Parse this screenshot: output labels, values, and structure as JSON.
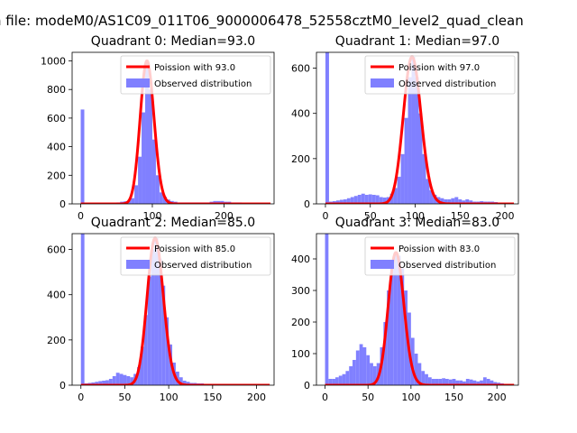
{
  "figure": {
    "suptitle": "n file: modeM0/AS1C09_011T06_9000006478_52558cztM0_level2_quad_clean"
  },
  "chart_data": [
    {
      "type": "bar",
      "title": "Quadrant 0: Median=93.0",
      "xlim": [
        -12,
        270
      ],
      "ylim": [
        0,
        1060
      ],
      "xticks": [
        0,
        100,
        200
      ],
      "yticks": [
        0,
        200,
        400,
        600,
        800,
        1000
      ],
      "legend": {
        "placement": "upper right",
        "entries": [
          "Poission with 93.0",
          "Observed distribution"
        ]
      },
      "line_color": "#ff0000",
      "bar_color": "#8080ff",
      "median": 93.0,
      "bin_width": 5,
      "bins": [
        [
          0,
          660
        ],
        [
          5,
          5
        ],
        [
          10,
          5
        ],
        [
          15,
          5
        ],
        [
          20,
          5
        ],
        [
          25,
          5
        ],
        [
          30,
          5
        ],
        [
          35,
          5
        ],
        [
          40,
          5
        ],
        [
          45,
          8
        ],
        [
          50,
          10
        ],
        [
          55,
          15
        ],
        [
          60,
          18
        ],
        [
          65,
          22
        ],
        [
          70,
          40
        ],
        [
          75,
          130
        ],
        [
          80,
          330
        ],
        [
          85,
          640
        ],
        [
          90,
          1000
        ],
        [
          95,
          800
        ],
        [
          100,
          450
        ],
        [
          105,
          200
        ],
        [
          110,
          80
        ],
        [
          115,
          50
        ],
        [
          120,
          30
        ],
        [
          125,
          20
        ],
        [
          130,
          15
        ],
        [
          135,
          10
        ],
        [
          140,
          10
        ],
        [
          145,
          10
        ],
        [
          150,
          10
        ],
        [
          155,
          10
        ],
        [
          160,
          10
        ],
        [
          165,
          10
        ],
        [
          170,
          10
        ],
        [
          175,
          10
        ],
        [
          180,
          15
        ],
        [
          185,
          20
        ],
        [
          190,
          20
        ],
        [
          195,
          20
        ],
        [
          200,
          15
        ],
        [
          205,
          15
        ],
        [
          210,
          10
        ],
        [
          215,
          10
        ],
        [
          220,
          10
        ],
        [
          225,
          5
        ],
        [
          230,
          5
        ],
        [
          235,
          5
        ],
        [
          240,
          5
        ],
        [
          245,
          5
        ],
        [
          250,
          3
        ],
        [
          255,
          3
        ]
      ]
    },
    {
      "type": "bar",
      "title": "Quadrant 1: Median=97.0",
      "xlim": [
        -10,
        215
      ],
      "ylim": [
        0,
        670
      ],
      "xticks": [
        0,
        50,
        100,
        150,
        200
      ],
      "yticks": [
        0,
        200,
        400,
        600
      ],
      "legend": {
        "placement": "upper right",
        "entries": [
          "Poission with 97.0",
          "Observed distribution"
        ]
      },
      "line_color": "#ff0000",
      "bar_color": "#8080ff",
      "median": 97.0,
      "bin_width": 4,
      "bins": [
        [
          0,
          670
        ],
        [
          4,
          10
        ],
        [
          8,
          12
        ],
        [
          12,
          15
        ],
        [
          16,
          18
        ],
        [
          20,
          20
        ],
        [
          24,
          25
        ],
        [
          28,
          30
        ],
        [
          32,
          35
        ],
        [
          36,
          40
        ],
        [
          40,
          45
        ],
        [
          44,
          40
        ],
        [
          48,
          42
        ],
        [
          52,
          40
        ],
        [
          56,
          38
        ],
        [
          60,
          30
        ],
        [
          64,
          28
        ],
        [
          68,
          30
        ],
        [
          72,
          45
        ],
        [
          76,
          70
        ],
        [
          80,
          120
        ],
        [
          84,
          220
        ],
        [
          88,
          380
        ],
        [
          92,
          560
        ],
        [
          96,
          650
        ],
        [
          100,
          560
        ],
        [
          104,
          400
        ],
        [
          108,
          220
        ],
        [
          112,
          110
        ],
        [
          116,
          60
        ],
        [
          120,
          40
        ],
        [
          124,
          30
        ],
        [
          128,
          25
        ],
        [
          132,
          20
        ],
        [
          136,
          20
        ],
        [
          140,
          25
        ],
        [
          144,
          30
        ],
        [
          148,
          20
        ],
        [
          152,
          15
        ],
        [
          156,
          20
        ],
        [
          160,
          15
        ],
        [
          164,
          10
        ],
        [
          168,
          10
        ],
        [
          172,
          12
        ],
        [
          176,
          10
        ],
        [
          180,
          10
        ],
        [
          184,
          10
        ],
        [
          188,
          8
        ],
        [
          192,
          6
        ],
        [
          196,
          6
        ],
        [
          200,
          4
        ],
        [
          204,
          4
        ]
      ]
    },
    {
      "type": "bar",
      "title": "Quadrant 2: Median=85.0",
      "xlim": [
        -10,
        220
      ],
      "ylim": [
        0,
        670
      ],
      "xticks": [
        0,
        50,
        100,
        150,
        200
      ],
      "yticks": [
        0,
        200,
        400,
        600
      ],
      "legend": {
        "placement": "upper right",
        "entries": [
          "Poission with 85.0",
          "Observed distribution"
        ]
      },
      "line_color": "#ff0000",
      "bar_color": "#8080ff",
      "median": 85.0,
      "bin_width": 4,
      "bins": [
        [
          0,
          670
        ],
        [
          4,
          8
        ],
        [
          8,
          10
        ],
        [
          12,
          12
        ],
        [
          16,
          15
        ],
        [
          20,
          18
        ],
        [
          24,
          20
        ],
        [
          28,
          22
        ],
        [
          32,
          28
        ],
        [
          36,
          40
        ],
        [
          40,
          55
        ],
        [
          44,
          50
        ],
        [
          48,
          45
        ],
        [
          52,
          40
        ],
        [
          56,
          35
        ],
        [
          60,
          50
        ],
        [
          64,
          80
        ],
        [
          68,
          170
        ],
        [
          72,
          310
        ],
        [
          76,
          480
        ],
        [
          80,
          600
        ],
        [
          84,
          650
        ],
        [
          88,
          560
        ],
        [
          92,
          440
        ],
        [
          96,
          300
        ],
        [
          100,
          180
        ],
        [
          104,
          100
        ],
        [
          108,
          60
        ],
        [
          112,
          35
        ],
        [
          116,
          20
        ],
        [
          120,
          15
        ],
        [
          124,
          10
        ],
        [
          128,
          10
        ],
        [
          132,
          8
        ],
        [
          136,
          8
        ],
        [
          140,
          6
        ],
        [
          144,
          6
        ],
        [
          148,
          5
        ],
        [
          152,
          5
        ],
        [
          156,
          4
        ],
        [
          160,
          4
        ],
        [
          164,
          4
        ],
        [
          168,
          3
        ],
        [
          172,
          3
        ],
        [
          176,
          3
        ],
        [
          180,
          2
        ],
        [
          184,
          2
        ],
        [
          188,
          2
        ],
        [
          192,
          2
        ],
        [
          196,
          2
        ],
        [
          200,
          2
        ],
        [
          204,
          2
        ]
      ]
    },
    {
      "type": "bar",
      "title": "Quadrant 3: Median=83.0",
      "xlim": [
        -10,
        225
      ],
      "ylim": [
        0,
        480
      ],
      "xticks": [
        0,
        50,
        100,
        150,
        200
      ],
      "yticks": [
        0,
        100,
        200,
        300,
        400
      ],
      "legend": {
        "placement": "upper right",
        "entries": [
          "Poission with 83.0",
          "Observed distribution"
        ]
      },
      "line_color": "#ff0000",
      "bar_color": "#8080ff",
      "median": 83.0,
      "bin_width": 4,
      "bins": [
        [
          0,
          480
        ],
        [
          4,
          20
        ],
        [
          8,
          20
        ],
        [
          12,
          25
        ],
        [
          16,
          30
        ],
        [
          20,
          35
        ],
        [
          24,
          45
        ],
        [
          28,
          60
        ],
        [
          32,
          80
        ],
        [
          36,
          110
        ],
        [
          40,
          130
        ],
        [
          44,
          120
        ],
        [
          48,
          95
        ],
        [
          52,
          70
        ],
        [
          56,
          60
        ],
        [
          60,
          70
        ],
        [
          64,
          120
        ],
        [
          68,
          200
        ],
        [
          72,
          300
        ],
        [
          76,
          370
        ],
        [
          80,
          420
        ],
        [
          84,
          410
        ],
        [
          88,
          370
        ],
        [
          92,
          300
        ],
        [
          96,
          230
        ],
        [
          100,
          150
        ],
        [
          104,
          100
        ],
        [
          108,
          70
        ],
        [
          112,
          45
        ],
        [
          116,
          35
        ],
        [
          120,
          25
        ],
        [
          124,
          20
        ],
        [
          128,
          20
        ],
        [
          132,
          20
        ],
        [
          136,
          22
        ],
        [
          140,
          20
        ],
        [
          144,
          18
        ],
        [
          148,
          20
        ],
        [
          152,
          15
        ],
        [
          156,
          15
        ],
        [
          160,
          12
        ],
        [
          164,
          20
        ],
        [
          168,
          18
        ],
        [
          172,
          15
        ],
        [
          176,
          12
        ],
        [
          180,
          15
        ],
        [
          184,
          25
        ],
        [
          188,
          20
        ],
        [
          192,
          15
        ],
        [
          196,
          10
        ],
        [
          200,
          8
        ],
        [
          204,
          6
        ],
        [
          208,
          4
        ]
      ]
    }
  ]
}
